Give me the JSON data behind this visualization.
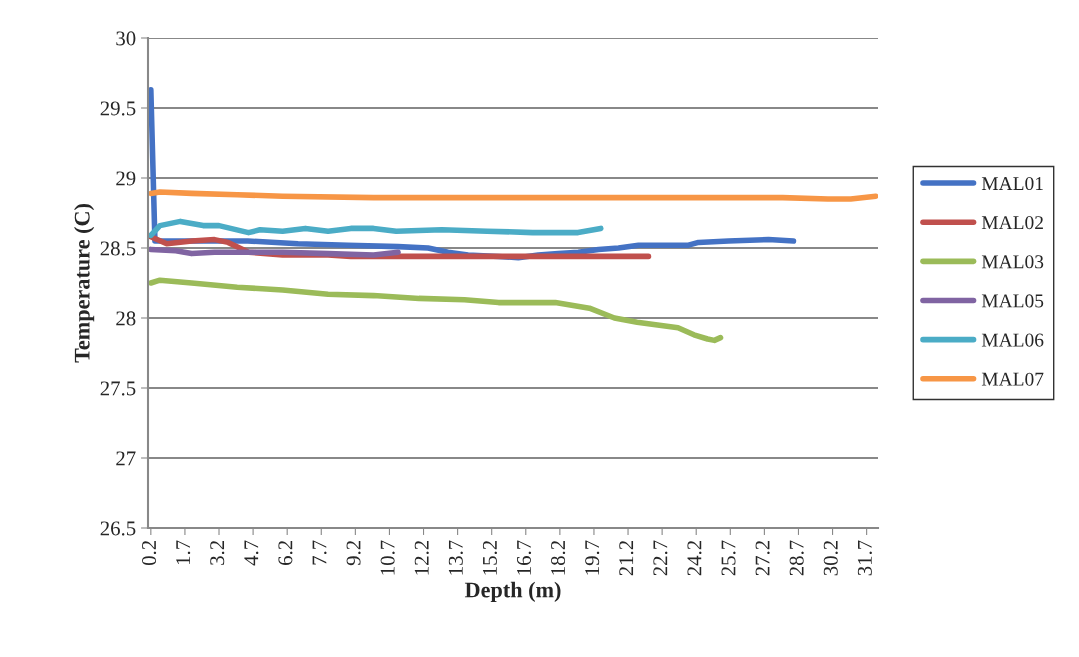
{
  "chart_data": {
    "type": "line",
    "xlabel": "Depth (m)",
    "ylabel": "Temperature (C)",
    "xlim": [
      0.075,
      32.2
    ],
    "xticks": [
      0.2,
      1.7,
      3.2,
      4.7,
      6.2,
      7.7,
      9.2,
      10.7,
      12.2,
      13.7,
      15.2,
      16.7,
      18.2,
      19.7,
      21.2,
      22.7,
      24.2,
      25.7,
      27.2,
      28.7,
      30.2,
      31.7
    ],
    "ylim": [
      26.5,
      30
    ],
    "yticks": [
      26.5,
      27,
      27.5,
      28,
      28.5,
      29,
      29.5,
      30
    ],
    "grid": "y",
    "legend": "right",
    "marker": "none",
    "line_style": "solid",
    "series": [
      {
        "name": "MAL01",
        "color": "#4472c4",
        "x": [
          0.2,
          0.38,
          4.47,
          6.68,
          8.88,
          11.08,
          12.4,
          13.28,
          14.16,
          15.49,
          16.37,
          17.25,
          18.13,
          19.01,
          19.9,
          20.78,
          21.66,
          23.86,
          24.3,
          25.62,
          27.38,
          28.48
        ],
        "values": [
          29.63,
          28.55,
          28.55,
          28.53,
          28.52,
          28.51,
          28.5,
          28.47,
          28.45,
          28.44,
          28.43,
          28.45,
          28.46,
          28.47,
          28.49,
          28.5,
          28.52,
          28.52,
          28.54,
          28.55,
          28.56,
          28.55
        ]
      },
      {
        "name": "MAL02",
        "color": "#c0504d",
        "x": [
          0.2,
          0.9,
          2.0,
          3.0,
          3.6,
          4.5,
          6.0,
          8.0,
          9.0,
          22.1
        ],
        "values": [
          28.58,
          28.53,
          28.55,
          28.56,
          28.54,
          28.47,
          28.45,
          28.45,
          28.44,
          28.44
        ]
      },
      {
        "name": "MAL03",
        "color": "#9bbb59",
        "x": [
          0.2,
          0.6,
          2.0,
          4.0,
          6.0,
          8.0,
          10.0,
          12.0,
          14.0,
          15.5,
          17.0,
          18.0,
          19.5,
          20.6,
          21.6,
          22.5,
          23.4,
          24.1,
          24.7,
          25.0,
          25.27
        ],
        "values": [
          28.25,
          28.27,
          28.25,
          28.22,
          28.2,
          28.17,
          28.16,
          28.14,
          28.13,
          28.11,
          28.11,
          28.11,
          28.07,
          28.0,
          27.97,
          27.95,
          27.93,
          27.88,
          27.85,
          27.84,
          27.86
        ]
      },
      {
        "name": "MAL05",
        "color": "#8064a2",
        "x": [
          0.2,
          1.3,
          2.0,
          3.0,
          6.0,
          8.0,
          10.0,
          11.08
        ],
        "values": [
          28.49,
          28.48,
          28.46,
          28.47,
          28.47,
          28.46,
          28.45,
          28.47
        ]
      },
      {
        "name": "MAL06",
        "color": "#4bacc6",
        "x": [
          0.2,
          0.6,
          1.5,
          2.5,
          3.2,
          4.5,
          5.0,
          6.0,
          7.0,
          8.0,
          9.0,
          10.0,
          11.0,
          13.0,
          15.0,
          17.0,
          19.0,
          20.0
        ],
        "values": [
          28.59,
          28.66,
          28.69,
          28.66,
          28.66,
          28.61,
          28.63,
          28.62,
          28.64,
          28.62,
          28.64,
          28.64,
          28.62,
          28.63,
          28.62,
          28.61,
          28.61,
          28.64
        ]
      },
      {
        "name": "MAL07",
        "color": "#f79646",
        "x": [
          0.2,
          0.6,
          2.0,
          4.0,
          6.0,
          10.0,
          20.0,
          28.0,
          30.0,
          31.0,
          32.1
        ],
        "values": [
          28.89,
          28.9,
          28.89,
          28.88,
          28.87,
          28.86,
          28.86,
          28.86,
          28.85,
          28.85,
          28.87
        ]
      }
    ]
  }
}
